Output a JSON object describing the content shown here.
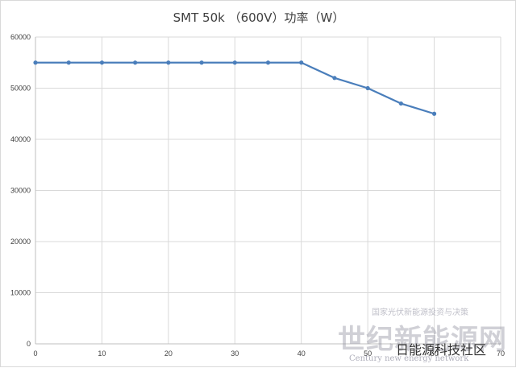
{
  "chart_data": {
    "type": "line",
    "title": "SMT 50k （600V）功率（W）",
    "xlabel": "",
    "ylabel": "",
    "xlim": [
      0,
      70
    ],
    "ylim": [
      0,
      60000
    ],
    "x_ticks": [
      "0",
      "10",
      "20",
      "30",
      "40",
      "50",
      "60",
      "70"
    ],
    "y_ticks": [
      "0",
      "10000",
      "20000",
      "30000",
      "40000",
      "50000",
      "60000"
    ],
    "grid": true,
    "legend": "none",
    "series": [
      {
        "x": [
          0,
          5,
          10,
          15,
          20,
          25,
          30,
          35,
          40,
          45,
          50,
          55,
          60
        ],
        "y": [
          55000,
          55000,
          55000,
          55000,
          55000,
          55000,
          55000,
          55000,
          55000,
          52000,
          50000,
          47000,
          45000
        ],
        "color": "#4a7ebb"
      }
    ]
  },
  "watermark": {
    "cn": "世纪新能源网",
    "en": "Century new energy network",
    "small": "国家光伏新能源投资与决策",
    "overlay": "日能源科技社区"
  }
}
